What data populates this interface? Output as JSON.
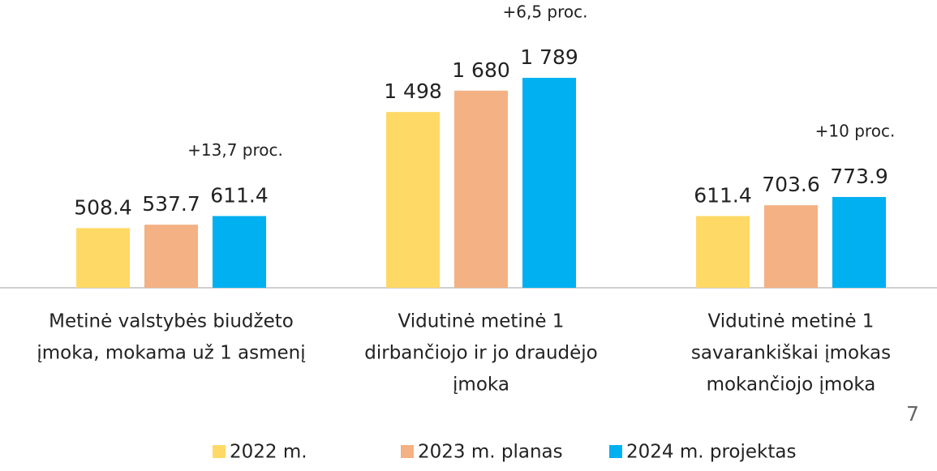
{
  "chart_data": {
    "type": "bar",
    "categories": [
      [
        "Metinė valstybės biudžeto",
        "įmoka, mokama už 1 asmenį"
      ],
      [
        "Vidutinė metinė 1",
        "dirbančiojo ir jo draudėjo",
        "įmoka"
      ],
      [
        "Vidutinė metinė 1",
        "savarankiškai įmokas",
        "mokančiojo įmoka"
      ]
    ],
    "series": [
      {
        "name": "2022 m.",
        "color": "#FFD966",
        "values": [
          508.4,
          1498,
          611.4
        ],
        "value_labels": [
          "508.4",
          "1 498",
          "611.4"
        ]
      },
      {
        "name": "2023 m. planas",
        "color": "#F4B183",
        "values": [
          537.7,
          1680,
          703.6
        ],
        "value_labels": [
          "537.7",
          "1 680",
          "703.6"
        ]
      },
      {
        "name": "2024 m. projektas",
        "color": "#00B0F0",
        "values": [
          611.4,
          1789,
          773.9
        ],
        "value_labels": [
          "611.4",
          "1 789",
          "773.9"
        ]
      }
    ],
    "annotations": [
      "+13,7 proc.",
      "+6,5 proc.",
      "+10 proc."
    ],
    "page_number": "7",
    "ylim": [
      0,
      2000
    ],
    "legend": "bottom"
  }
}
